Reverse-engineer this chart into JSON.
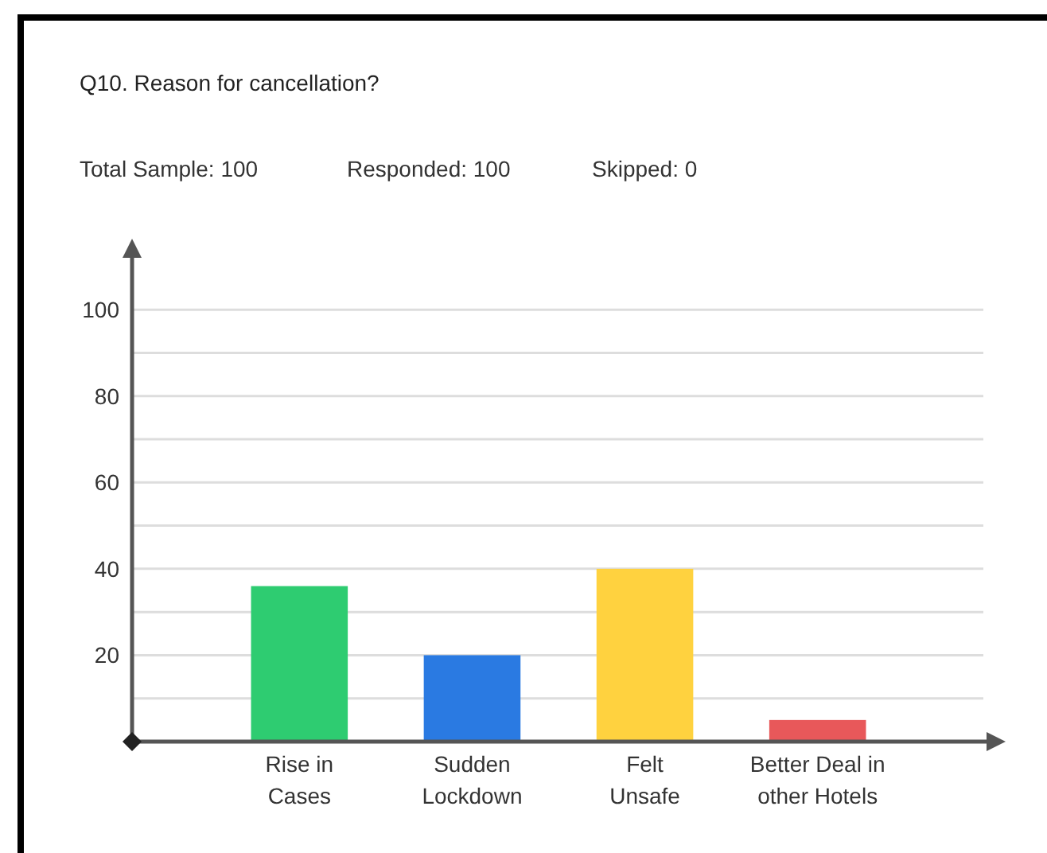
{
  "chart_data": {
    "type": "bar",
    "title": "Q10. Reason for cancellation?",
    "annotations": [
      "Total Sample: 100",
      "Responded: 100",
      "Skipped: 0"
    ],
    "categories": [
      "Rise in Cases",
      "Sudden Lockdown",
      "Felt Unsafe",
      "Better Deal in other Hotels"
    ],
    "values": [
      36,
      20,
      40,
      5
    ],
    "colors": [
      "#2ecc71",
      "#2a7ae2",
      "#ffd23f",
      "#e8585a"
    ],
    "ylim": [
      0,
      112
    ],
    "yticks": [
      {
        "value": 0,
        "label": null
      },
      {
        "value": 10,
        "label": null
      },
      20,
      {
        "value": 30,
        "label": null
      },
      40,
      {
        "value": 50,
        "label": null
      },
      60,
      {
        "value": 70,
        "label": null
      },
      80,
      {
        "value": 90,
        "label": null
      },
      100
    ],
    "grid": "y"
  }
}
